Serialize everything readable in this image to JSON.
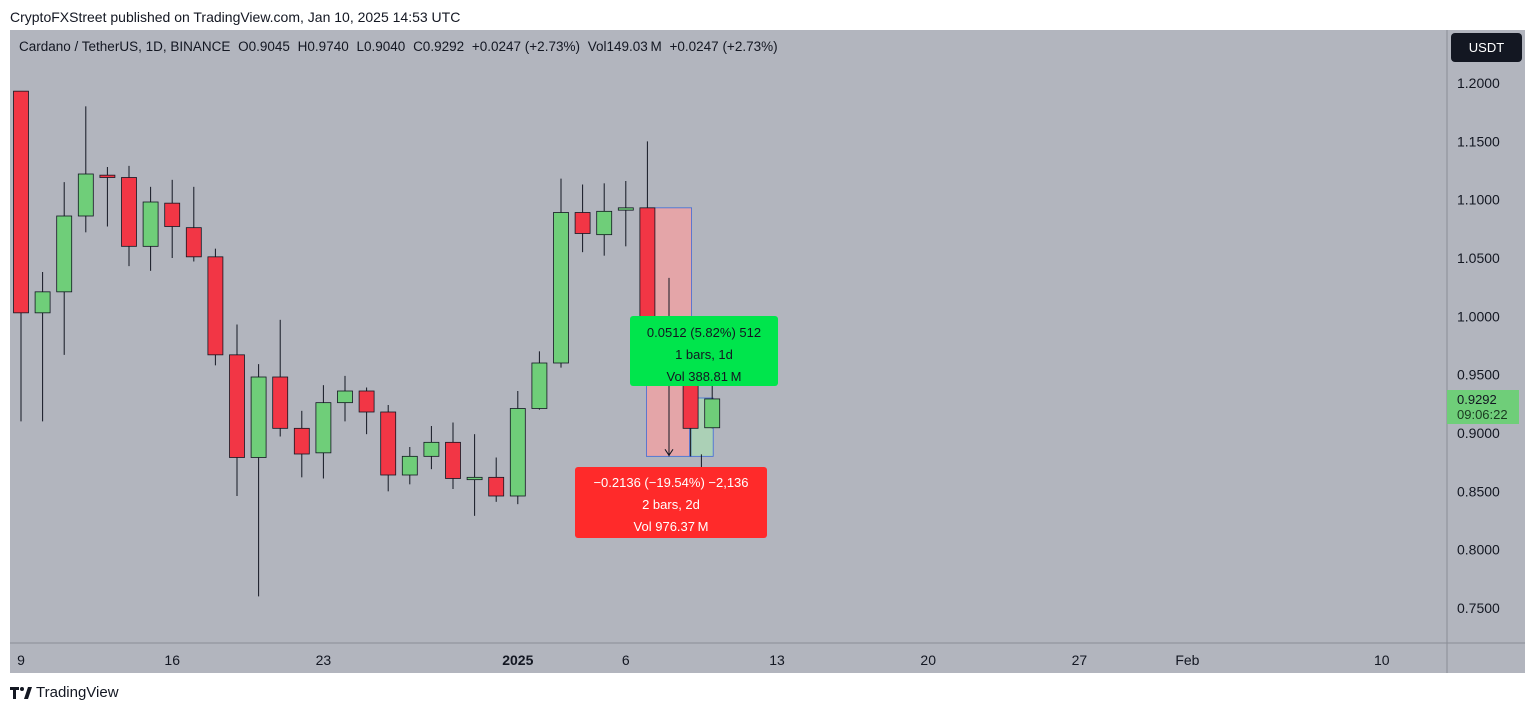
{
  "header": {
    "publisher_line": "CryptoFXStreet published on TradingView.com, Jan 10, 2025 14:53 UTC"
  },
  "legend": {
    "symbol": "Cardano / TetherUS, 1D, BINANCE",
    "open": "O0.9045",
    "high": "H0.9740",
    "low": "L0.9040",
    "close": "C0.9292",
    "change": "+0.0247 (+2.73%)",
    "volume": "Vol149.03 M",
    "volume_change": "+0.0247 (+2.73%)"
  },
  "quote_button": {
    "label": "USDT"
  },
  "last_price": {
    "value": "0.9292",
    "countdown": "09:06:22"
  },
  "measure_up": {
    "line1": "0.0512 (5.82%) 512",
    "line2": "1 bars, 1d",
    "line3": "Vol 388.81 M"
  },
  "measure_down": {
    "line1": "−0.2136 (−19.54%) −2,136",
    "line2": "2 bars, 2d",
    "line3": "Vol 976.37 M"
  },
  "brand": {
    "name": "TradingView"
  },
  "colors": {
    "background": "#b2b5be",
    "up": "#6fce79",
    "down": "#f23645",
    "measure_up_box": "#00e54c",
    "measure_down_box": "#ff2a2a",
    "range_fill": "#f4a0a0",
    "range_border": "#3d6bd8"
  },
  "chart_data": {
    "type": "candlestick",
    "title": "Cardano / TetherUS, 1D, BINANCE",
    "ylim": [
      0.72,
      1.22
    ],
    "y_ticks": [
      "1.2000",
      "1.1500",
      "1.1000",
      "1.0500",
      "1.0000",
      "0.9500",
      "0.9000",
      "0.8500",
      "0.8000",
      "0.7500"
    ],
    "x_ticks": [
      {
        "label": "9",
        "idx": 0
      },
      {
        "label": "16",
        "idx": 7
      },
      {
        "label": "23",
        "idx": 14
      },
      {
        "label": "2025",
        "idx": 23,
        "bold": true
      },
      {
        "label": "6",
        "idx": 28
      },
      {
        "label": "13",
        "idx": 35
      },
      {
        "label": "20",
        "idx": 42
      },
      {
        "label": "27",
        "idx": 49
      },
      {
        "label": "Feb",
        "idx": 54
      },
      {
        "label": "10",
        "idx": 63
      }
    ],
    "candles": [
      {
        "date": "2024-12-09",
        "o": 1.193,
        "h": 1.193,
        "l": 0.91,
        "c": 1.003
      },
      {
        "date": "2024-12-10",
        "o": 1.003,
        "h": 1.038,
        "l": 0.91,
        "c": 1.021
      },
      {
        "date": "2024-12-11",
        "o": 1.021,
        "h": 1.115,
        "l": 0.967,
        "c": 1.086
      },
      {
        "date": "2024-12-12",
        "o": 1.086,
        "h": 1.18,
        "l": 1.072,
        "c": 1.122
      },
      {
        "date": "2024-12-13",
        "o": 1.121,
        "h": 1.128,
        "l": 1.077,
        "c": 1.119
      },
      {
        "date": "2024-12-14",
        "o": 1.119,
        "h": 1.129,
        "l": 1.043,
        "c": 1.06
      },
      {
        "date": "2024-12-15",
        "o": 1.06,
        "h": 1.111,
        "l": 1.039,
        "c": 1.098
      },
      {
        "date": "2024-12-16",
        "o": 1.097,
        "h": 1.117,
        "l": 1.05,
        "c": 1.077
      },
      {
        "date": "2024-12-17",
        "o": 1.076,
        "h": 1.111,
        "l": 1.047,
        "c": 1.051
      },
      {
        "date": "2024-12-18",
        "o": 1.051,
        "h": 1.058,
        "l": 0.958,
        "c": 0.967
      },
      {
        "date": "2024-12-19",
        "o": 0.967,
        "h": 0.993,
        "l": 0.846,
        "c": 0.879
      },
      {
        "date": "2024-12-20",
        "o": 0.879,
        "h": 0.959,
        "l": 0.76,
        "c": 0.948
      },
      {
        "date": "2024-12-21",
        "o": 0.948,
        "h": 0.997,
        "l": 0.897,
        "c": 0.904
      },
      {
        "date": "2024-12-22",
        "o": 0.904,
        "h": 0.919,
        "l": 0.862,
        "c": 0.882
      },
      {
        "date": "2024-12-23",
        "o": 0.883,
        "h": 0.941,
        "l": 0.861,
        "c": 0.926
      },
      {
        "date": "2024-12-24",
        "o": 0.926,
        "h": 0.949,
        "l": 0.91,
        "c": 0.936
      },
      {
        "date": "2024-12-25",
        "o": 0.936,
        "h": 0.939,
        "l": 0.899,
        "c": 0.918
      },
      {
        "date": "2024-12-26",
        "o": 0.918,
        "h": 0.924,
        "l": 0.85,
        "c": 0.864
      },
      {
        "date": "2024-12-27",
        "o": 0.864,
        "h": 0.888,
        "l": 0.856,
        "c": 0.88
      },
      {
        "date": "2024-12-28",
        "o": 0.88,
        "h": 0.906,
        "l": 0.869,
        "c": 0.892
      },
      {
        "date": "2024-12-29",
        "o": 0.892,
        "h": 0.909,
        "l": 0.852,
        "c": 0.861
      },
      {
        "date": "2024-12-30",
        "o": 0.86,
        "h": 0.899,
        "l": 0.829,
        "c": 0.862
      },
      {
        "date": "2024-12-31",
        "o": 0.862,
        "h": 0.879,
        "l": 0.841,
        "c": 0.846
      },
      {
        "date": "2025-01-01",
        "o": 0.846,
        "h": 0.936,
        "l": 0.839,
        "c": 0.921
      },
      {
        "date": "2025-01-02",
        "o": 0.921,
        "h": 0.97,
        "l": 0.92,
        "c": 0.96
      },
      {
        "date": "2025-01-03",
        "o": 0.96,
        "h": 1.118,
        "l": 0.956,
        "c": 1.089
      },
      {
        "date": "2025-01-04",
        "o": 1.089,
        "h": 1.113,
        "l": 1.055,
        "c": 1.071
      },
      {
        "date": "2025-01-05",
        "o": 1.07,
        "h": 1.114,
        "l": 1.052,
        "c": 1.09
      },
      {
        "date": "2025-01-06",
        "o": 1.091,
        "h": 1.116,
        "l": 1.06,
        "c": 1.093
      },
      {
        "date": "2025-01-07",
        "o": 1.093,
        "h": 1.15,
        "l": 0.985,
        "c": 0.987
      },
      {
        "date": "2025-01-08",
        "o": 0.988,
        "h": 0.993,
        "l": 0.88,
        "c": 0.947
      },
      {
        "date": "2025-01-09",
        "o": 0.947,
        "h": 0.96,
        "l": 0.88,
        "c": 0.904
      },
      {
        "date": "2025-01-10",
        "o": 0.9045,
        "h": 0.974,
        "l": 0.904,
        "c": 0.9292
      }
    ],
    "measure_ranges": [
      {
        "from": "2025-01-07",
        "to": "2025-01-09",
        "high": 1.093,
        "low": 0.88,
        "change": "−0.2136 (−19.54%)"
      },
      {
        "from": "2025-01-09",
        "to": "2025-01-10",
        "high": 0.93,
        "low": 0.88,
        "change": "0.0512 (5.82%)"
      }
    ]
  }
}
